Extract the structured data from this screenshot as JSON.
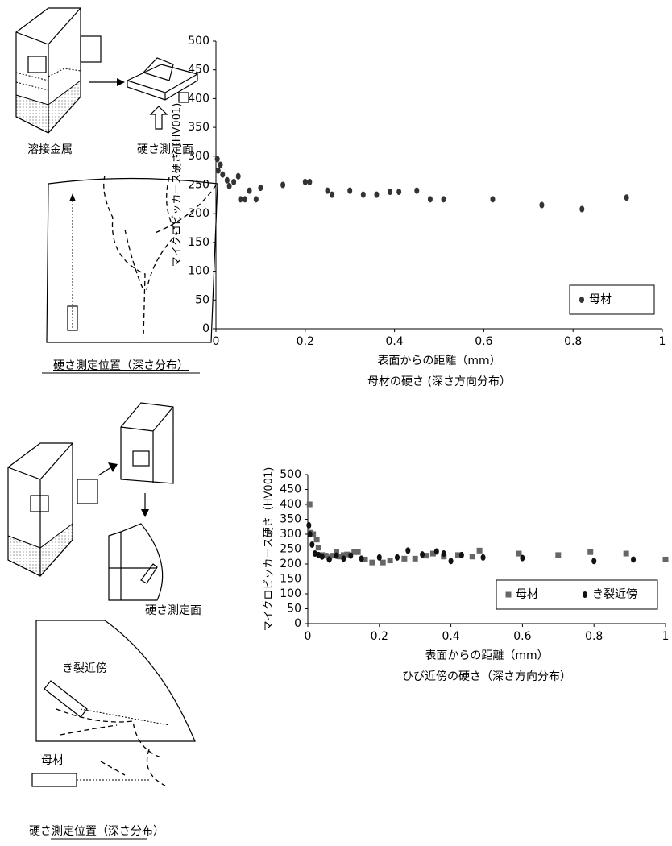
{
  "chart_data": [
    {
      "type": "scatter",
      "title": "母材の硬さ (深さ方向分布）",
      "x_label": "表面からの距離（mm）",
      "y_label": "マイクロビッカース硬さ（HV001)",
      "xlim": [
        0,
        1
      ],
      "xticks": [
        0,
        0.2,
        0.4,
        0.6,
        0.8,
        1
      ],
      "ylim": [
        0,
        500
      ],
      "yticks": [
        0,
        50,
        100,
        150,
        200,
        250,
        300,
        350,
        400,
        450,
        500
      ],
      "legend": "lower right",
      "series": [
        {
          "name": "母材",
          "color": "#333333",
          "marker": "circle",
          "x": [
            0.003,
            0.005,
            0.01,
            0.015,
            0.025,
            0.03,
            0.04,
            0.05,
            0.055,
            0.065,
            0.075,
            0.09,
            0.1,
            0.15,
            0.2,
            0.21,
            0.25,
            0.26,
            0.3,
            0.33,
            0.36,
            0.39,
            0.41,
            0.45,
            0.48,
            0.51,
            0.62,
            0.73,
            0.82,
            0.92
          ],
          "values": [
            295,
            275,
            285,
            268,
            258,
            248,
            255,
            265,
            225,
            225,
            240,
            225,
            245,
            250,
            255,
            255,
            240,
            233,
            240,
            233,
            233,
            238,
            238,
            240,
            225,
            225,
            225,
            215,
            208,
            228
          ]
        }
      ]
    },
    {
      "type": "scatter",
      "title": "ひび近傍の硬さ（深さ方向分布）",
      "x_label": "表面からの距離（mm）",
      "y_label": "マイクロビッカース硬さ（HV001)",
      "xlim": [
        0,
        1
      ],
      "xticks": [
        0,
        0.2,
        0.4,
        0.6,
        0.8,
        1
      ],
      "ylim": [
        0,
        500
      ],
      "yticks": [
        0,
        50,
        100,
        150,
        200,
        250,
        300,
        350,
        400,
        450,
        500
      ],
      "legend": "lower right",
      "series": [
        {
          "name": "母材",
          "color": "#666666",
          "marker": "square",
          "x": [
            0.005,
            0.008,
            0.015,
            0.025,
            0.03,
            0.04,
            0.05,
            0.06,
            0.07,
            0.08,
            0.09,
            0.1,
            0.11,
            0.13,
            0.14,
            0.16,
            0.18,
            0.21,
            0.23,
            0.27,
            0.3,
            0.33,
            0.35,
            0.38,
            0.42,
            0.46,
            0.48,
            0.59,
            0.7,
            0.79,
            0.89,
            1
          ],
          "values": [
            400,
            305,
            300,
            282,
            255,
            230,
            228,
            222,
            228,
            240,
            225,
            230,
            232,
            240,
            240,
            215,
            205,
            205,
            212,
            218,
            218,
            228,
            235,
            225,
            230,
            225,
            245,
            235,
            230,
            240,
            235,
            215
          ]
        },
        {
          "name": "き裂近傍",
          "color": "#111111",
          "marker": "circle",
          "x": [
            0.003,
            0.006,
            0.012,
            0.02,
            0.03,
            0.04,
            0.06,
            0.08,
            0.1,
            0.12,
            0.15,
            0.2,
            0.25,
            0.28,
            0.32,
            0.36,
            0.38,
            0.4,
            0.43,
            0.49,
            0.6,
            0.8,
            0.91
          ],
          "values": [
            330,
            300,
            265,
            235,
            230,
            225,
            215,
            228,
            218,
            228,
            218,
            222,
            222,
            245,
            232,
            242,
            235,
            210,
            230,
            222,
            220,
            210,
            215
          ]
        }
      ]
    }
  ],
  "diagrams": {
    "top": {
      "labels": [
        "溶接金属",
        "硬さ測定面"
      ],
      "caption": "硬さ測定位置（深さ分布）"
    },
    "bottom": {
      "labels": [
        "硬さ測定面",
        "き裂近傍",
        "母材"
      ],
      "caption": "硬さ測定位置（深さ分布）"
    }
  }
}
